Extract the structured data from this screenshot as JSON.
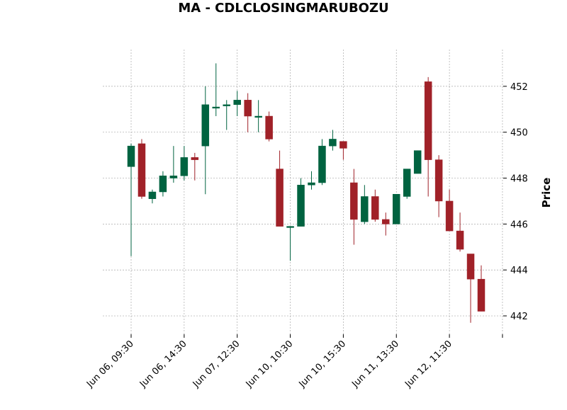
{
  "chart_data": {
    "type": "candlestick",
    "title": "MA - CDLCLOSINGMARUBOZU",
    "ylabel": "Price",
    "xlabel": "",
    "ylim": [
      441.2,
      453.6
    ],
    "yticks": [
      442,
      444,
      446,
      448,
      450,
      452
    ],
    "grid": true,
    "y_axis_position": "right",
    "up_color": "#006340",
    "down_color": "#a02128",
    "xtick_labels": [
      {
        "index": 0,
        "label": "Jun 06, 09:30"
      },
      {
        "index": 5,
        "label": "Jun 06, 14:30"
      },
      {
        "index": 10,
        "label": "Jun 07, 12:30"
      },
      {
        "index": 15,
        "label": "Jun 10, 10:30"
      },
      {
        "index": 20,
        "label": "Jun 10, 15:30"
      },
      {
        "index": 25,
        "label": "Jun 11, 13:30"
      },
      {
        "index": 30,
        "label": "Jun 12, 11:30"
      },
      {
        "index": 35,
        "label": ""
      }
    ],
    "candles": [
      {
        "open": 448.5,
        "high": 449.5,
        "low": 444.6,
        "close": 449.4
      },
      {
        "open": 449.5,
        "high": 449.7,
        "low": 447.1,
        "close": 447.2
      },
      {
        "open": 447.1,
        "high": 447.5,
        "low": 446.9,
        "close": 447.4
      },
      {
        "open": 447.4,
        "high": 448.3,
        "low": 447.2,
        "close": 448.1
      },
      {
        "open": 448.0,
        "high": 449.4,
        "low": 447.8,
        "close": 448.1
      },
      {
        "open": 448.1,
        "high": 449.4,
        "low": 447.9,
        "close": 448.9
      },
      {
        "open": 448.9,
        "high": 449.1,
        "low": 447.9,
        "close": 448.8
      },
      {
        "open": 449.4,
        "high": 452.0,
        "low": 447.3,
        "close": 451.2
      },
      {
        "open": 451.1,
        "high": 453.0,
        "low": 450.7,
        "close": 451.1
      },
      {
        "open": 451.2,
        "high": 451.4,
        "low": 450.1,
        "close": 451.2
      },
      {
        "open": 451.2,
        "high": 451.8,
        "low": 450.7,
        "close": 451.4
      },
      {
        "open": 451.4,
        "high": 451.7,
        "low": 450.0,
        "close": 450.7
      },
      {
        "open": 450.7,
        "high": 451.4,
        "low": 450.0,
        "close": 450.7
      },
      {
        "open": 450.7,
        "high": 450.9,
        "low": 449.6,
        "close": 449.7
      },
      {
        "open": 448.4,
        "high": 449.2,
        "low": 445.9,
        "close": 445.9
      },
      {
        "open": 445.9,
        "high": 445.9,
        "low": 444.4,
        "close": 445.9
      },
      {
        "open": 445.9,
        "high": 448.0,
        "low": 445.9,
        "close": 447.7
      },
      {
        "open": 447.7,
        "high": 448.3,
        "low": 447.5,
        "close": 447.8
      },
      {
        "open": 447.8,
        "high": 449.7,
        "low": 447.7,
        "close": 449.4
      },
      {
        "open": 449.4,
        "high": 450.1,
        "low": 449.2,
        "close": 449.7
      },
      {
        "open": 449.6,
        "high": 449.6,
        "low": 448.8,
        "close": 449.3
      },
      {
        "open": 447.8,
        "high": 448.4,
        "low": 445.1,
        "close": 446.2
      },
      {
        "open": 446.1,
        "high": 447.7,
        "low": 446.0,
        "close": 447.2
      },
      {
        "open": 447.2,
        "high": 447.5,
        "low": 446.1,
        "close": 446.2
      },
      {
        "open": 446.2,
        "high": 446.5,
        "low": 445.5,
        "close": 446.0
      },
      {
        "open": 446.0,
        "high": 447.3,
        "low": 446.0,
        "close": 447.3
      },
      {
        "open": 447.2,
        "high": 448.4,
        "low": 447.1,
        "close": 448.4
      },
      {
        "open": 448.2,
        "high": 449.2,
        "low": 448.2,
        "close": 449.2
      },
      {
        "open": 452.2,
        "high": 452.4,
        "low": 447.2,
        "close": 448.8
      },
      {
        "open": 448.8,
        "high": 449.0,
        "low": 446.3,
        "close": 447.0
      },
      {
        "open": 447.0,
        "high": 447.5,
        "low": 445.7,
        "close": 445.7
      },
      {
        "open": 445.7,
        "high": 446.5,
        "low": 444.8,
        "close": 444.9
      },
      {
        "open": 444.7,
        "high": 444.7,
        "low": 441.7,
        "close": 443.6
      },
      {
        "open": 443.6,
        "high": 444.2,
        "low": 442.2,
        "close": 442.2
      }
    ]
  }
}
